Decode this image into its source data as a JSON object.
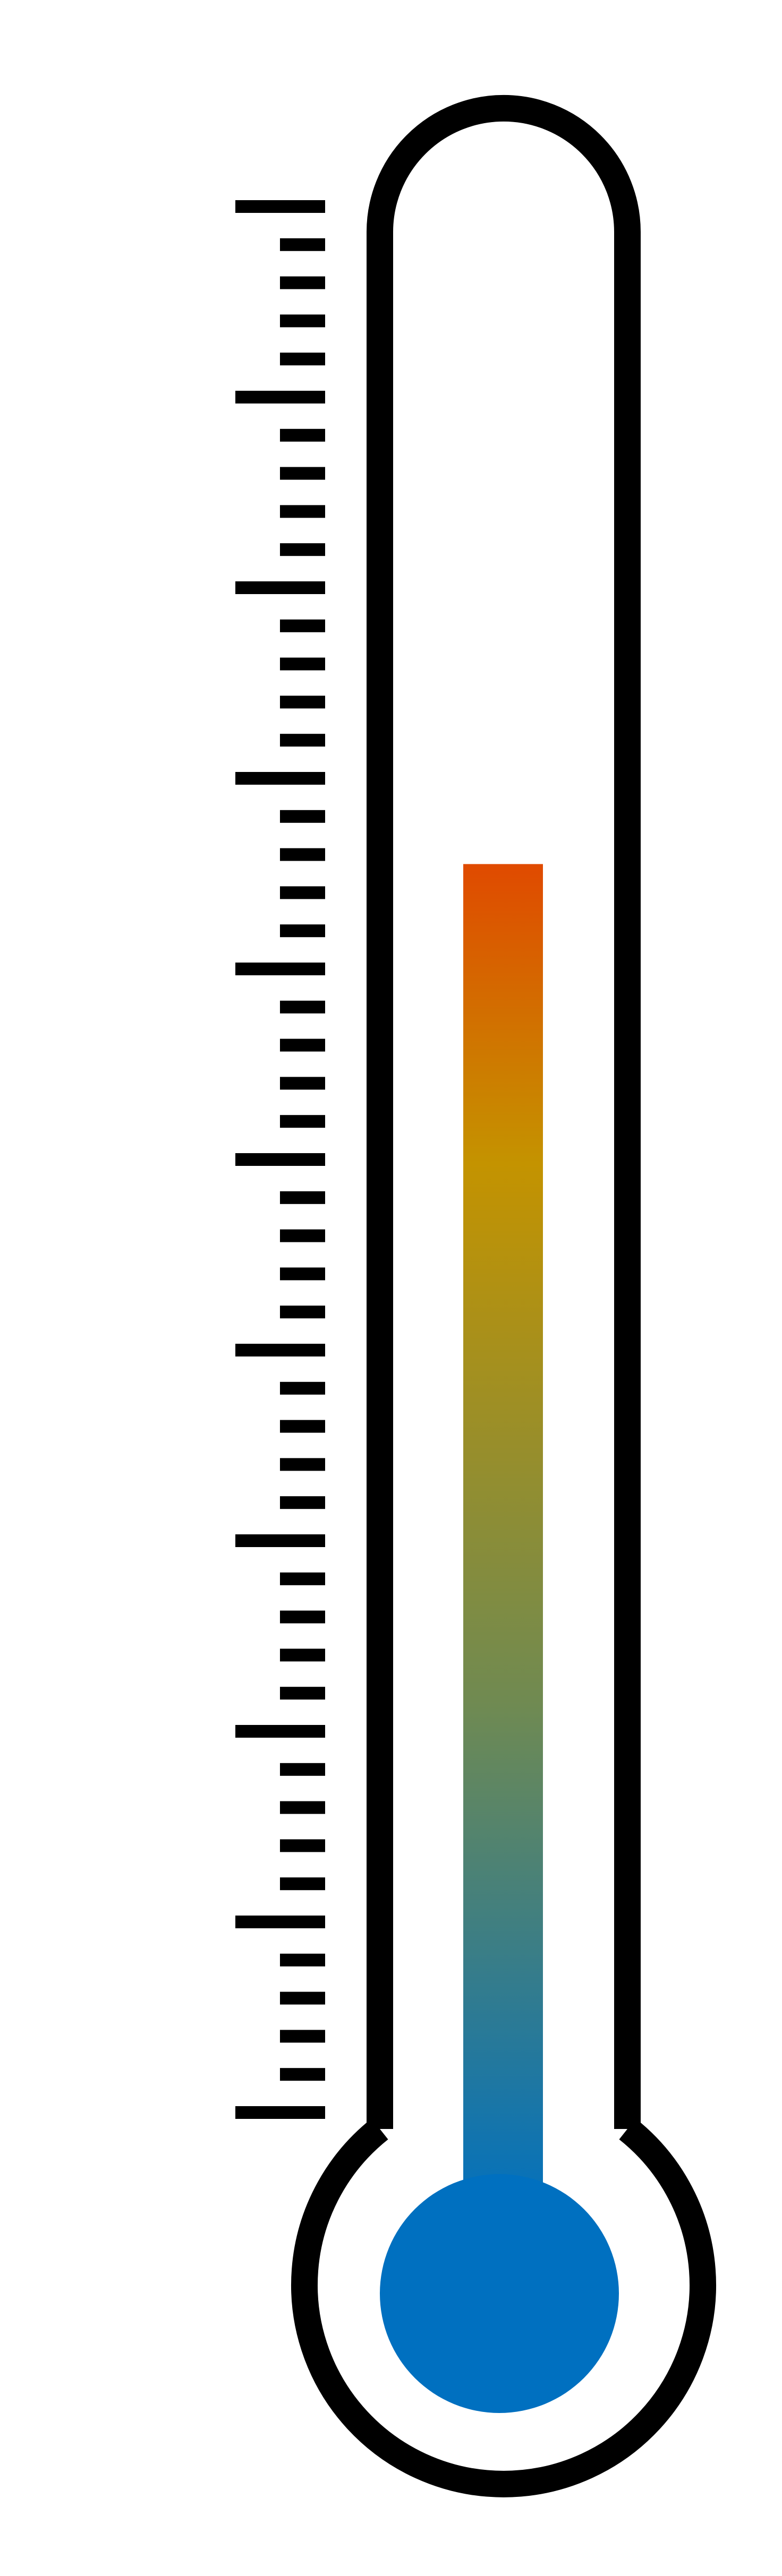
{
  "thermometer": {
    "icon": "thermometer-icon",
    "fill_level": 0.655,
    "scale": {
      "major_count": 10,
      "minor_per_major": 4
    },
    "colors": {
      "outline": "#000000",
      "background": "#ffffff",
      "mercury_top": "#e04a00",
      "mercury_mid": "#c49300",
      "mercury_lower": "#6f8a52",
      "mercury_bottom": "#0070c0",
      "bulb": "#0070c0"
    }
  }
}
